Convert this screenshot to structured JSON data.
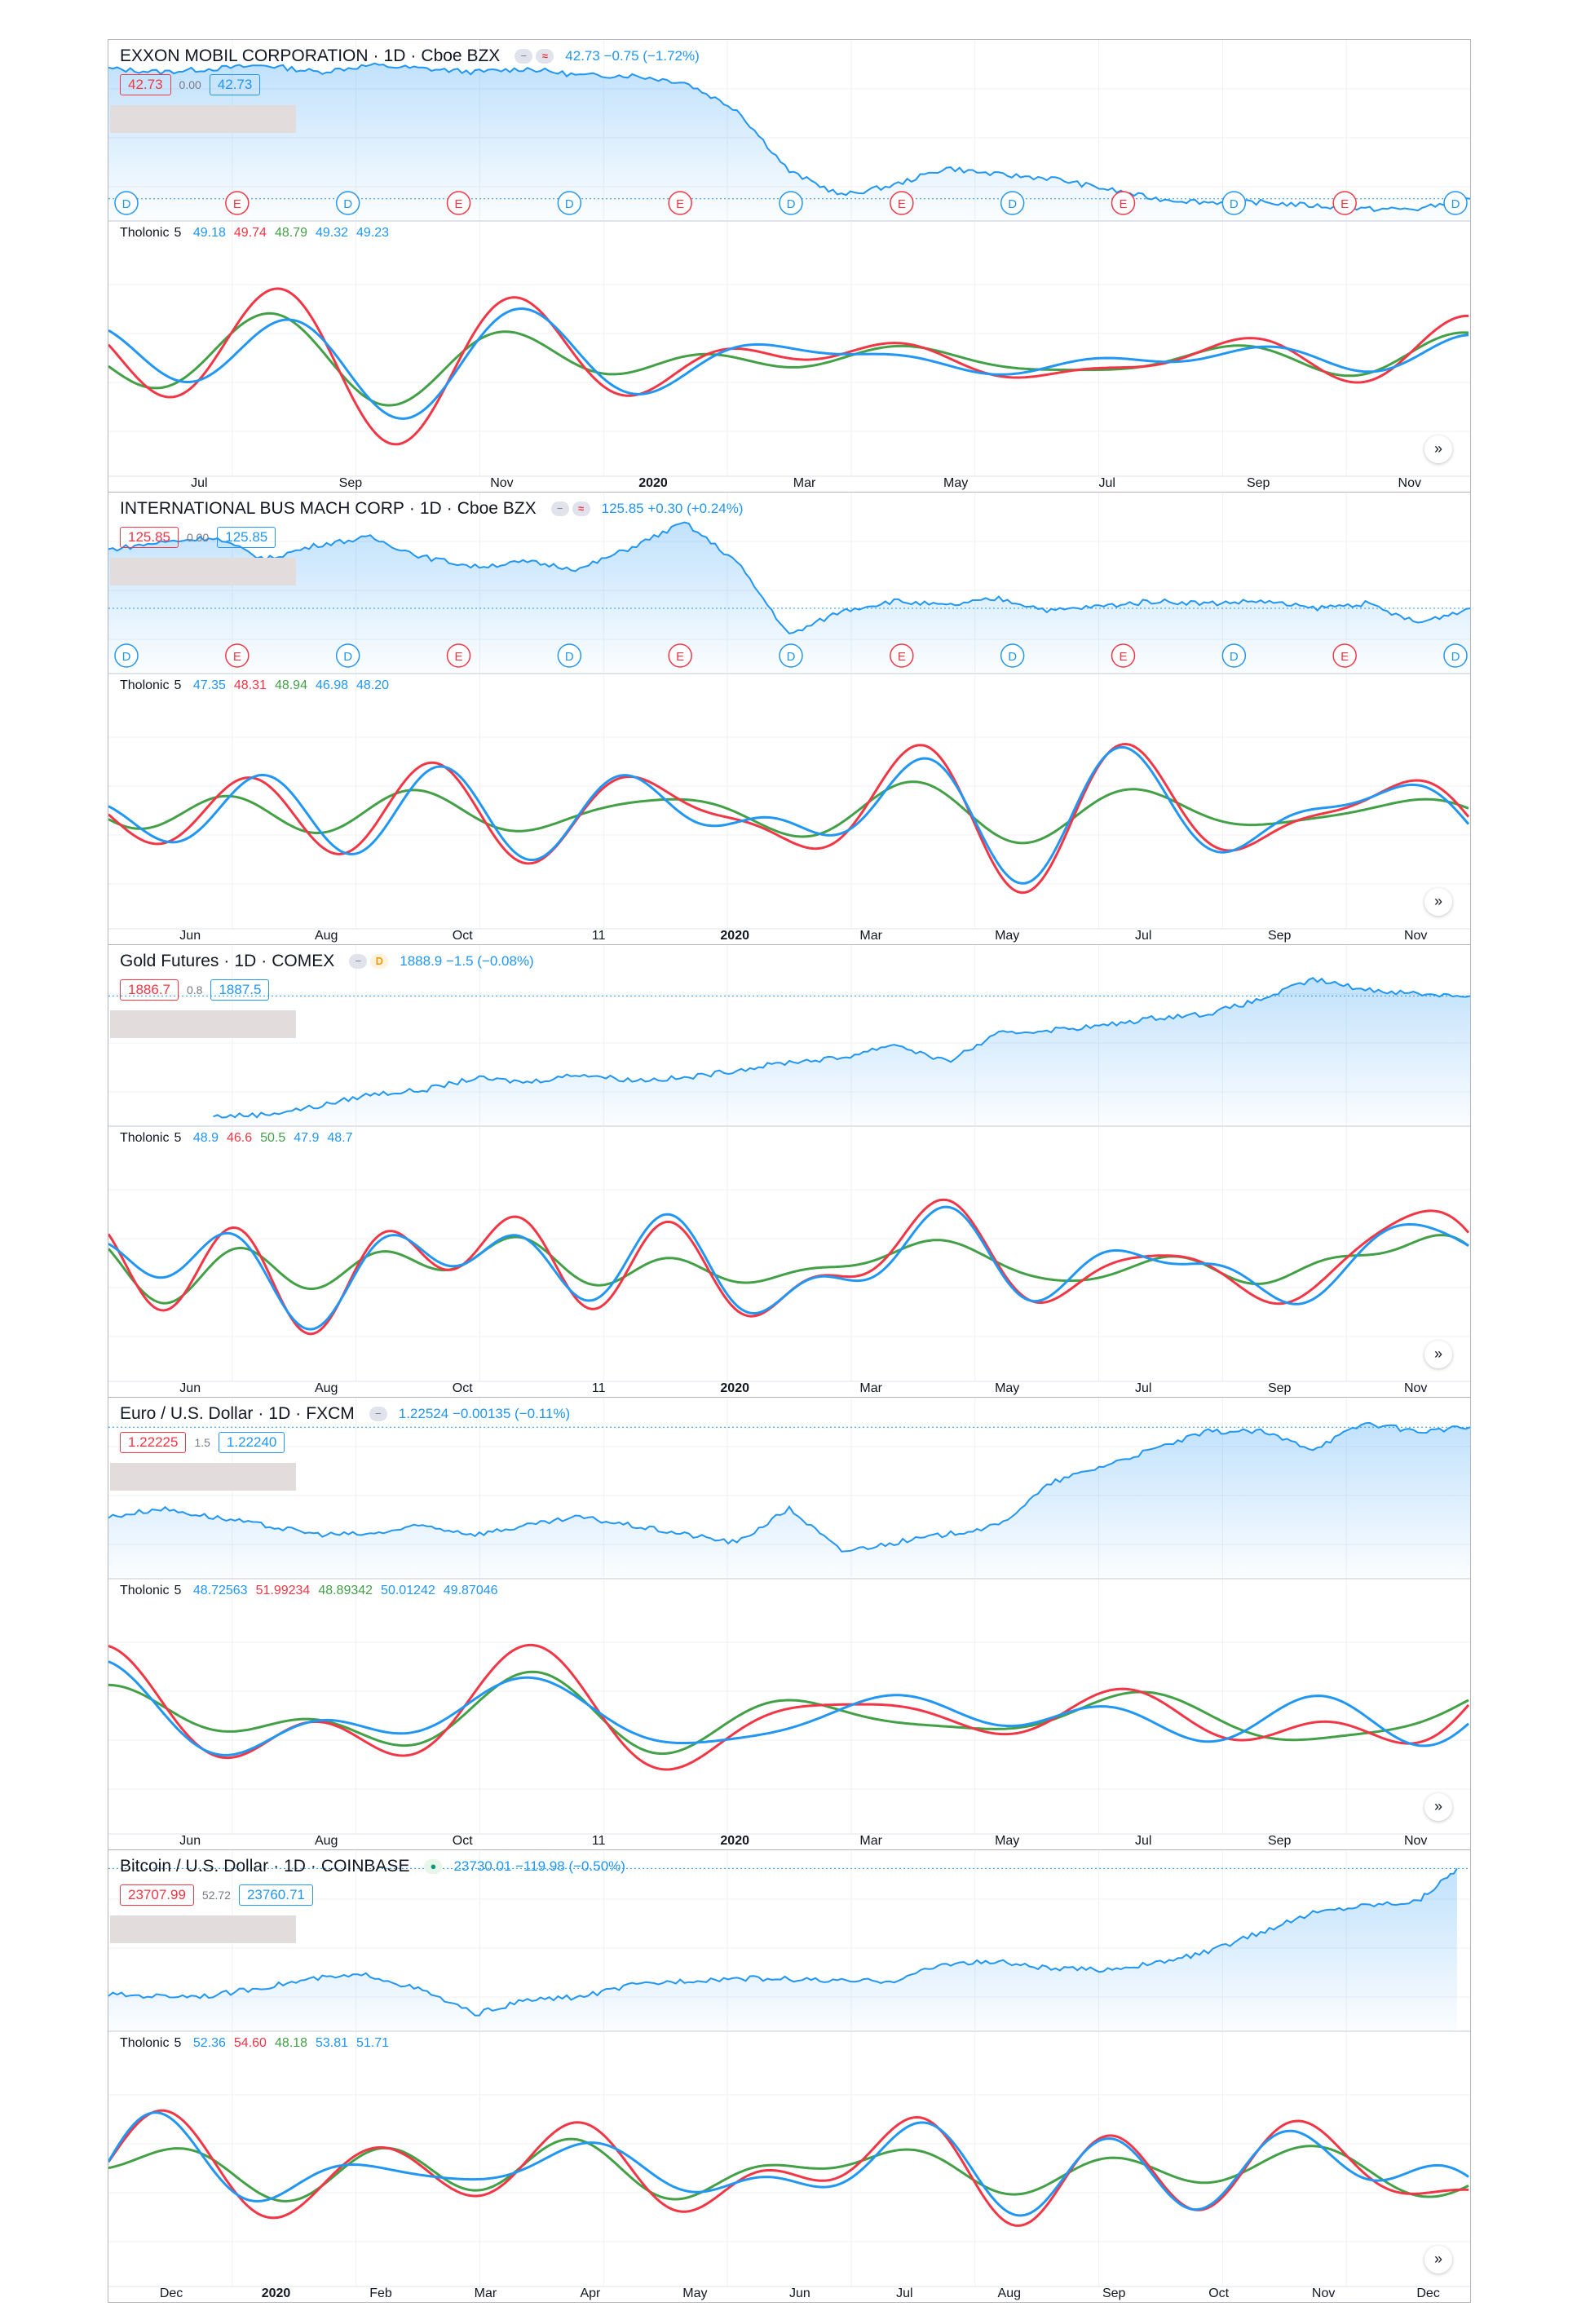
{
  "colors": {
    "price": "#2196f3",
    "fill": "#2196f3",
    "osc_blue": "#2196f3",
    "osc_red": "#f23645",
    "osc_green": "#43a047",
    "grid": "#eef0f3",
    "sep": "#e0e3eb",
    "event_e": "#f23645",
    "event_d": "#2196f3"
  },
  "panels": [
    {
      "symbol": "EXXON MOBIL CORPORATION",
      "interval": "1D",
      "exchange": "Cboe BZX",
      "badges": [
        {
          "text": "−",
          "kind": "gray"
        },
        {
          "text": "≈",
          "kind": "red"
        }
      ],
      "quote": "42.73 −0.75 (−1.72%)",
      "bid": "42.73",
      "spread": "0.00",
      "ask": "42.73",
      "indicator": {
        "name": "Tholonic",
        "length": "5",
        "values": [
          "49.18",
          "49.74",
          "48.79",
          "49.32",
          "49.23"
        ]
      },
      "time_axis": [
        "Jul",
        "Sep",
        "Nov",
        "2020",
        "Mar",
        "May",
        "Jul",
        "Sep",
        "Nov"
      ],
      "year_label": "2020",
      "events": [
        "D",
        "E",
        "D",
        "E",
        "D",
        "E",
        "D",
        "E",
        "D",
        "E",
        "D",
        "E",
        "D"
      ],
      "chart_data": {
        "type": "line",
        "title": "EXXON MOBIL CORPORATION",
        "ylim": [
          28,
          78
        ],
        "x": [
          0,
          20,
          40,
          60,
          80,
          100,
          120,
          140,
          160,
          180,
          200,
          220,
          240,
          260,
          280,
          300,
          320,
          340,
          360,
          380,
          400,
          420,
          440,
          460,
          480,
          500,
          520
        ],
        "close": [
          72,
          71,
          72,
          73,
          71,
          73,
          72,
          71,
          72,
          70,
          70,
          68,
          60,
          42,
          35,
          38,
          43,
          41,
          40,
          37,
          34,
          33,
          33,
          32,
          31,
          31,
          34
        ]
      }
    },
    {
      "symbol": "INTERNATIONAL BUS MACH CORP",
      "interval": "1D",
      "exchange": "Cboe BZX",
      "badges": [
        {
          "text": "−",
          "kind": "gray"
        },
        {
          "text": "≈",
          "kind": "red"
        }
      ],
      "quote": "125.85 +0.30 (+0.24%)",
      "bid": "125.85",
      "spread": "0.00",
      "ask": "125.85",
      "indicator": {
        "name": "Tholonic",
        "length": "5",
        "values": [
          "47.35",
          "48.31",
          "48.94",
          "46.98",
          "48.20"
        ]
      },
      "time_axis": [
        "Jun",
        "Aug",
        "Oct",
        "11",
        "2020",
        "Mar",
        "May",
        "Jul",
        "Sep",
        "Nov"
      ],
      "year_label": "2020",
      "events": [
        "D",
        "E",
        "D",
        "E",
        "D",
        "E",
        "D",
        "E",
        "D",
        "E",
        "D",
        "E",
        "D"
      ],
      "chart_data": {
        "type": "line",
        "title": "INTERNATIONAL BUS MACH CORP",
        "ylim": [
          95,
          165
        ],
        "x": [
          0,
          20,
          40,
          60,
          80,
          100,
          120,
          140,
          160,
          180,
          200,
          220,
          240,
          260,
          280,
          300,
          320,
          340,
          360,
          380,
          400,
          420,
          440,
          460,
          480,
          500,
          520
        ],
        "close": [
          145,
          148,
          150,
          141,
          147,
          150,
          142,
          138,
          140,
          137,
          146,
          156,
          140,
          110,
          120,
          124,
          122,
          125,
          120,
          122,
          124,
          123,
          124,
          121,
          123,
          115,
          121
        ]
      }
    },
    {
      "symbol": "Gold Futures",
      "interval": "1D",
      "exchange": "COMEX",
      "badges": [
        {
          "text": "−",
          "kind": "gray"
        },
        {
          "text": "D",
          "kind": "orange"
        }
      ],
      "quote": "1888.9 −1.5 (−0.08%)",
      "bid": "1886.7",
      "spread": "0.8",
      "ask": "1887.5",
      "indicator": {
        "name": "Tholonic",
        "length": "5",
        "values": [
          "48.9",
          "46.6",
          "50.5",
          "47.9",
          "48.7"
        ]
      },
      "time_axis": [
        "Jun",
        "Aug",
        "Oct",
        "11",
        "2020",
        "Mar",
        "May",
        "Jul",
        "Sep",
        "Nov"
      ],
      "year_label": "2020",
      "events": [],
      "chart_data": {
        "type": "line",
        "title": "Gold Futures",
        "ylim": [
          1250,
          2100
        ],
        "x": [
          40,
          60,
          80,
          100,
          120,
          140,
          160,
          180,
          200,
          220,
          240,
          260,
          280,
          300,
          320,
          340,
          360,
          380,
          400,
          420,
          440,
          460,
          480,
          500,
          520
        ],
        "close": [
          1290,
          1300,
          1340,
          1400,
          1420,
          1480,
          1460,
          1500,
          1470,
          1480,
          1520,
          1560,
          1580,
          1650,
          1560,
          1700,
          1720,
          1740,
          1780,
          1800,
          1870,
          1970,
          1920,
          1900,
          1888
        ]
      }
    },
    {
      "symbol": "Euro / U.S. Dollar",
      "interval": "1D",
      "exchange": "FXCM",
      "badges": [
        {
          "text": "−",
          "kind": "gray"
        }
      ],
      "quote": "1.22524 −0.00135 (−0.11%)",
      "bid": "1.22225",
      "spread": "1.5",
      "ask": "1.22240",
      "indicator": {
        "name": "Tholonic",
        "length": "5",
        "values": [
          "48.72563",
          "51.99234",
          "48.89342",
          "50.01242",
          "49.87046"
        ]
      },
      "time_axis": [
        "Jun",
        "Aug",
        "Oct",
        "11",
        "2020",
        "Mar",
        "May",
        "Jul",
        "Sep",
        "Nov"
      ],
      "year_label": "2020",
      "events": [],
      "chart_data": {
        "type": "line",
        "title": "Euro / U.S. Dollar",
        "ylim": [
          1.05,
          1.25
        ],
        "x": [
          0,
          20,
          40,
          60,
          80,
          100,
          120,
          140,
          160,
          180,
          200,
          220,
          240,
          260,
          280,
          300,
          320,
          340,
          360,
          380,
          400,
          420,
          440,
          460,
          480,
          500,
          520
        ],
        "close": [
          1.12,
          1.13,
          1.12,
          1.11,
          1.1,
          1.1,
          1.11,
          1.1,
          1.11,
          1.12,
          1.11,
          1.1,
          1.09,
          1.13,
          1.08,
          1.09,
          1.1,
          1.11,
          1.16,
          1.18,
          1.2,
          1.22,
          1.22,
          1.2,
          1.23,
          1.22,
          1.225
        ]
      }
    },
    {
      "symbol": "Bitcoin / U.S. Dollar",
      "interval": "1D",
      "exchange": "COINBASE",
      "badges": [
        {
          "text": "●",
          "kind": "green"
        }
      ],
      "quote": "23730.01 −119.98 (−0.50%)",
      "bid": "23707.99",
      "spread": "52.72",
      "ask": "23760.71",
      "indicator": {
        "name": "Tholonic",
        "length": "5",
        "values": [
          "52.36",
          "54.60",
          "48.18",
          "53.81",
          "51.71"
        ]
      },
      "time_axis": [
        "Dec",
        "2020",
        "Feb",
        "Mar",
        "Apr",
        "May",
        "Jun",
        "Jul",
        "Aug",
        "Sep",
        "Oct",
        "Nov",
        "Dec"
      ],
      "year_label": "2020",
      "events": [],
      "chart_data": {
        "type": "line",
        "title": "Bitcoin / U.S. Dollar",
        "ylim": [
          3000,
          25000
        ],
        "x": [
          0,
          20,
          40,
          60,
          80,
          100,
          120,
          140,
          160,
          180,
          200,
          220,
          240,
          260,
          280,
          300,
          320,
          340,
          360,
          380,
          400,
          420,
          440,
          460,
          480,
          500,
          515
        ],
        "close": [
          7500,
          7300,
          7400,
          8500,
          9600,
          10000,
          8000,
          5000,
          6800,
          7200,
          8700,
          9300,
          9600,
          9500,
          9200,
          9300,
          11500,
          11700,
          10800,
          10700,
          11500,
          13000,
          15500,
          18000,
          19000,
          19500,
          23700
        ]
      }
    }
  ]
}
